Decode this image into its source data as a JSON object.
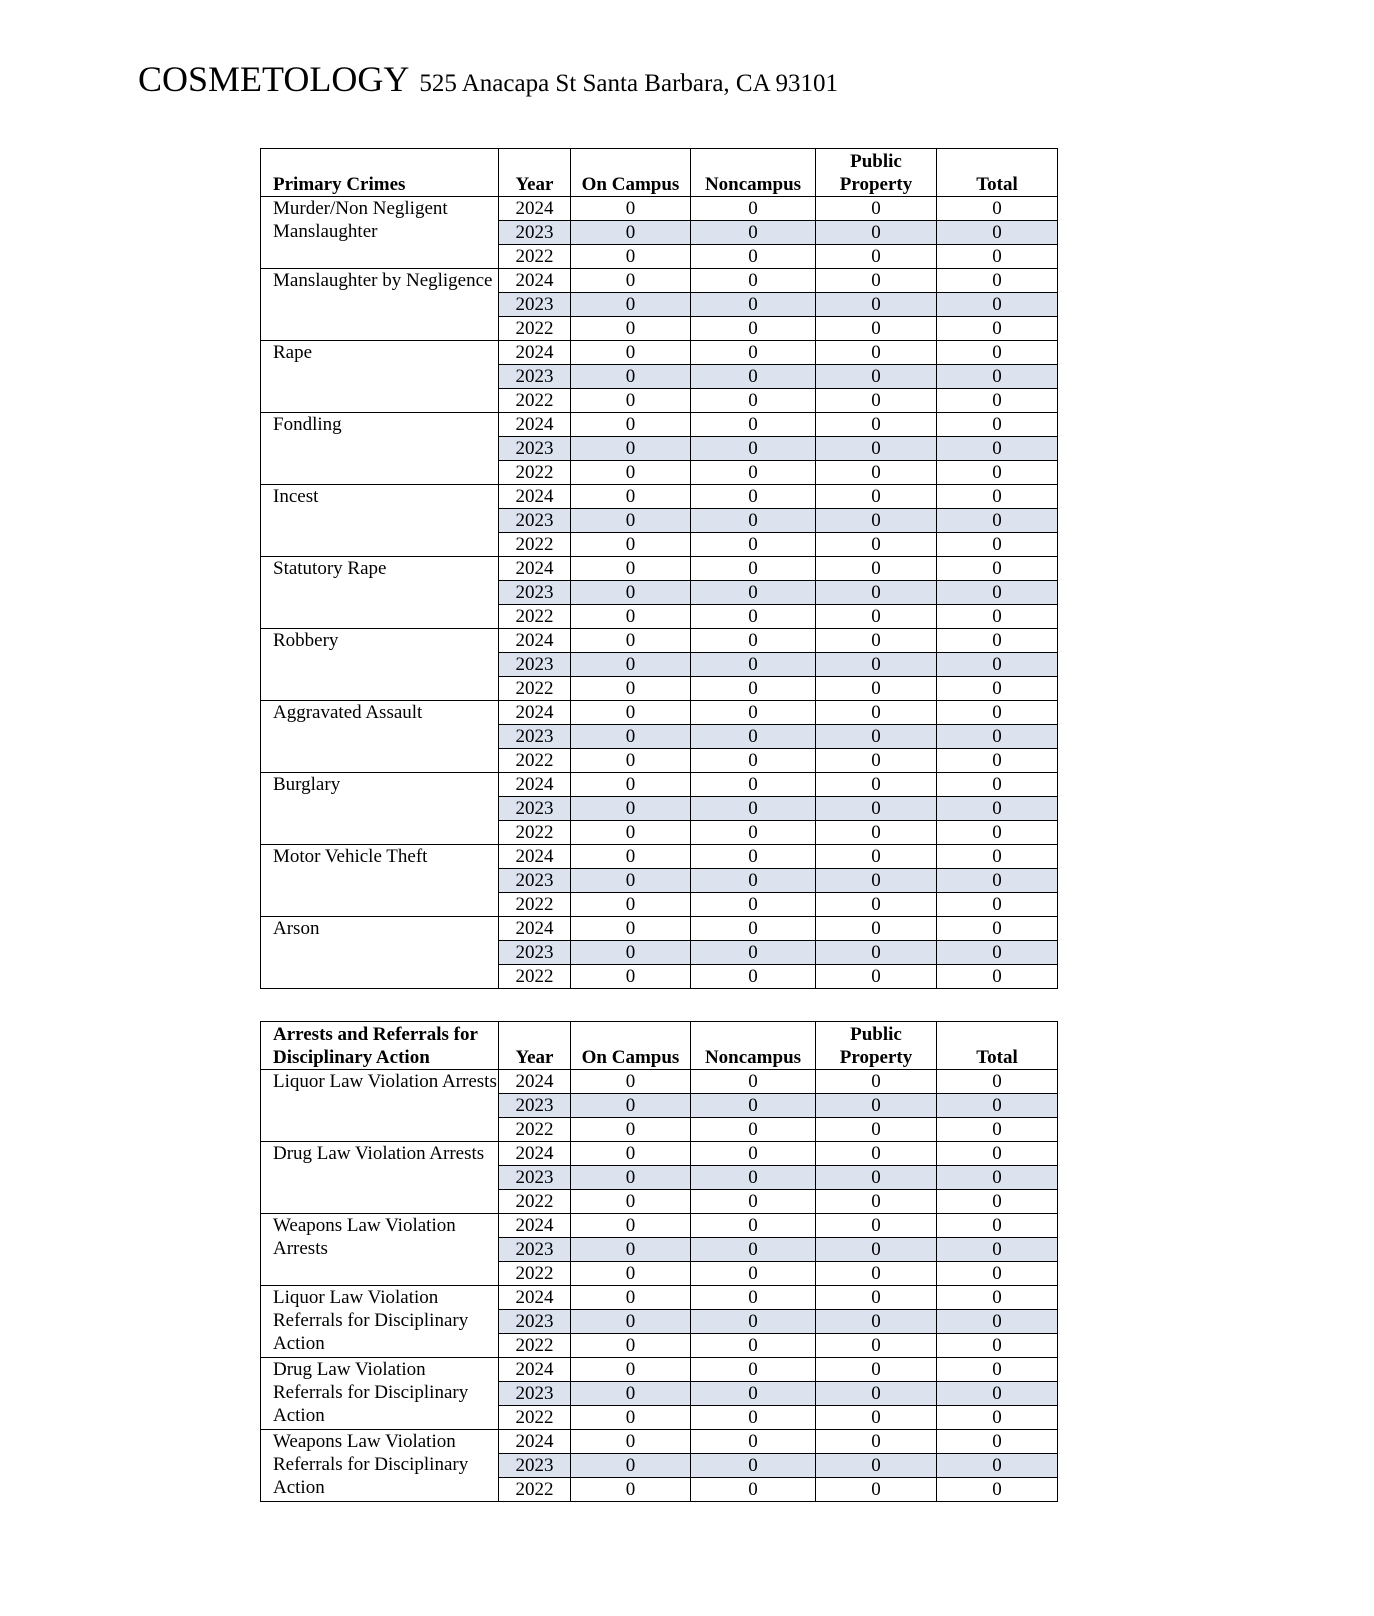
{
  "header": {
    "title": "COSMETOLOGY",
    "address": "525 Anacapa St Santa Barbara, CA 93101"
  },
  "colors": {
    "shaded_row": "#dce3ef"
  },
  "tables": [
    {
      "columns": [
        "Primary Crimes",
        "Year",
        "On Campus",
        "Noncampus",
        "Public Property",
        "Total"
      ],
      "groups": [
        {
          "label": "Murder/Non Negligent Manslaughter",
          "rows": [
            [
              "2024",
              "0",
              "0",
              "0",
              "0"
            ],
            [
              "2023",
              "0",
              "0",
              "0",
              "0"
            ],
            [
              "2022",
              "0",
              "0",
              "0",
              "0"
            ]
          ]
        },
        {
          "label": "Manslaughter by Negligence",
          "rows": [
            [
              "2024",
              "0",
              "0",
              "0",
              "0"
            ],
            [
              "2023",
              "0",
              "0",
              "0",
              "0"
            ],
            [
              "2022",
              "0",
              "0",
              "0",
              "0"
            ]
          ]
        },
        {
          "label": "Rape",
          "rows": [
            [
              "2024",
              "0",
              "0",
              "0",
              "0"
            ],
            [
              "2023",
              "0",
              "0",
              "0",
              "0"
            ],
            [
              "2022",
              "0",
              "0",
              "0",
              "0"
            ]
          ]
        },
        {
          "label": "Fondling",
          "rows": [
            [
              "2024",
              "0",
              "0",
              "0",
              "0"
            ],
            [
              "2023",
              "0",
              "0",
              "0",
              "0"
            ],
            [
              "2022",
              "0",
              "0",
              "0",
              "0"
            ]
          ]
        },
        {
          "label": "Incest",
          "rows": [
            [
              "2024",
              "0",
              "0",
              "0",
              "0"
            ],
            [
              "2023",
              "0",
              "0",
              "0",
              "0"
            ],
            [
              "2022",
              "0",
              "0",
              "0",
              "0"
            ]
          ]
        },
        {
          "label": "Statutory Rape",
          "rows": [
            [
              "2024",
              "0",
              "0",
              "0",
              "0"
            ],
            [
              "2023",
              "0",
              "0",
              "0",
              "0"
            ],
            [
              "2022",
              "0",
              "0",
              "0",
              "0"
            ]
          ]
        },
        {
          "label": "Robbery",
          "rows": [
            [
              "2024",
              "0",
              "0",
              "0",
              "0"
            ],
            [
              "2023",
              "0",
              "0",
              "0",
              "0"
            ],
            [
              "2022",
              "0",
              "0",
              "0",
              "0"
            ]
          ]
        },
        {
          "label": "Aggravated Assault",
          "rows": [
            [
              "2024",
              "0",
              "0",
              "0",
              "0"
            ],
            [
              "2023",
              "0",
              "0",
              "0",
              "0"
            ],
            [
              "2022",
              "0",
              "0",
              "0",
              "0"
            ]
          ]
        },
        {
          "label": "Burglary",
          "rows": [
            [
              "2024",
              "0",
              "0",
              "0",
              "0"
            ],
            [
              "2023",
              "0",
              "0",
              "0",
              "0"
            ],
            [
              "2022",
              "0",
              "0",
              "0",
              "0"
            ]
          ]
        },
        {
          "label": "Motor Vehicle Theft",
          "rows": [
            [
              "2024",
              "0",
              "0",
              "0",
              "0"
            ],
            [
              "2023",
              "0",
              "0",
              "0",
              "0"
            ],
            [
              "2022",
              "0",
              "0",
              "0",
              "0"
            ]
          ]
        },
        {
          "label": "Arson",
          "rows": [
            [
              "2024",
              "0",
              "0",
              "0",
              "0"
            ],
            [
              "2023",
              "0",
              "0",
              "0",
              "0"
            ],
            [
              "2022",
              "0",
              "0",
              "0",
              "0"
            ]
          ]
        }
      ]
    },
    {
      "columns": [
        "Arrests and Referrals for Disciplinary Action",
        "Year",
        "On Campus",
        "Noncampus",
        "Public Property",
        "Total"
      ],
      "groups": [
        {
          "label": "Liquor Law Violation Arrests",
          "rows": [
            [
              "2024",
              "0",
              "0",
              "0",
              "0"
            ],
            [
              "2023",
              "0",
              "0",
              "0",
              "0"
            ],
            [
              "2022",
              "0",
              "0",
              "0",
              "0"
            ]
          ]
        },
        {
          "label": "Drug Law Violation Arrests",
          "rows": [
            [
              "2024",
              "0",
              "0",
              "0",
              "0"
            ],
            [
              "2023",
              "0",
              "0",
              "0",
              "0"
            ],
            [
              "2022",
              "0",
              "0",
              "0",
              "0"
            ]
          ]
        },
        {
          "label": "Weapons Law Violation Arrests",
          "rows": [
            [
              "2024",
              "0",
              "0",
              "0",
              "0"
            ],
            [
              "2023",
              "0",
              "0",
              "0",
              "0"
            ],
            [
              "2022",
              "0",
              "0",
              "0",
              "0"
            ]
          ]
        },
        {
          "label": "Liquor Law Violation Referrals for Disciplinary Action",
          "rows": [
            [
              "2024",
              "0",
              "0",
              "0",
              "0"
            ],
            [
              "2023",
              "0",
              "0",
              "0",
              "0"
            ],
            [
              "2022",
              "0",
              "0",
              "0",
              "0"
            ]
          ]
        },
        {
          "label": "Drug Law Violation Referrals for Disciplinary Action",
          "rows": [
            [
              "2024",
              "0",
              "0",
              "0",
              "0"
            ],
            [
              "2023",
              "0",
              "0",
              "0",
              "0"
            ],
            [
              "2022",
              "0",
              "0",
              "0",
              "0"
            ]
          ]
        },
        {
          "label": "Weapons Law Violation Referrals for Disciplinary Action",
          "rows": [
            [
              "2024",
              "0",
              "0",
              "0",
              "0"
            ],
            [
              "2023",
              "0",
              "0",
              "0",
              "0"
            ],
            [
              "2022",
              "0",
              "0",
              "0",
              "0"
            ]
          ]
        }
      ]
    }
  ]
}
